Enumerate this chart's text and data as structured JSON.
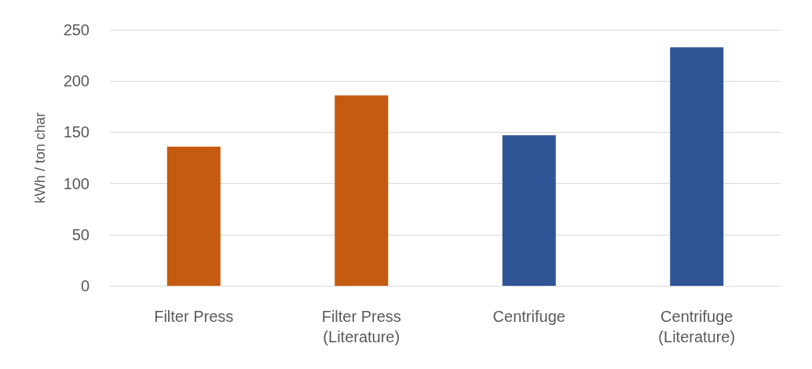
{
  "chart_data": {
    "type": "bar",
    "ylabel": "kWh / ton char",
    "categories": [
      "Filter Press",
      "Filter Press\n(Literature)",
      "Centrifuge",
      "Centrifuge\n(Literature)"
    ],
    "values": [
      136,
      186,
      147,
      233
    ],
    "colors": [
      "#c55a11",
      "#c55a11",
      "#2f5597",
      "#2f5597"
    ],
    "ylim": [
      0,
      250
    ],
    "yticks": [
      0,
      50,
      100,
      150,
      200,
      250
    ],
    "grid": "y"
  }
}
